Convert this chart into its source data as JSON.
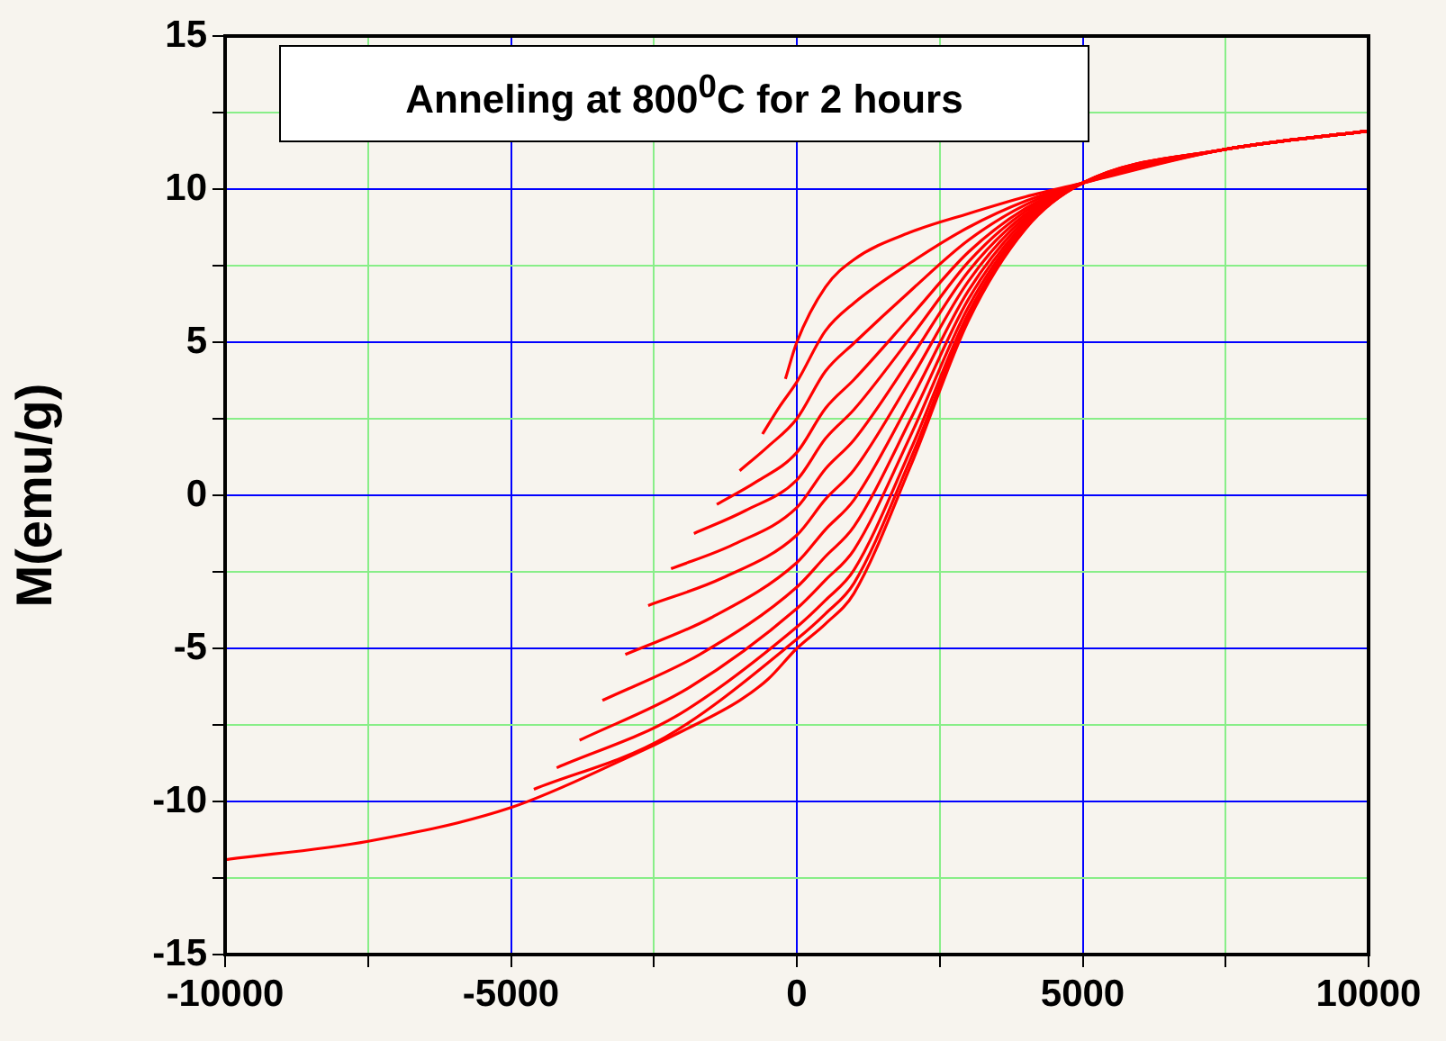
{
  "chart_data": {
    "type": "line",
    "title": "Anneling at 800$^{0}$C for 2 hours",
    "ylabel": "M(emu/g)",
    "xlim": [
      -10000,
      10000
    ],
    "ylim": [
      -15,
      15
    ],
    "xticks": [
      -10000,
      {
        "value": -7500,
        "label": null
      },
      -5000,
      {
        "value": -2500,
        "label": null
      },
      0,
      {
        "value": 2500,
        "label": null
      },
      5000,
      {
        "value": 7500,
        "label": null
      },
      10000
    ],
    "yticks": [
      -15,
      {
        "value": -12.5,
        "label": null
      },
      -10,
      {
        "value": -7.5,
        "label": null
      },
      -5,
      {
        "value": -2.5,
        "label": null
      },
      0,
      {
        "value": 2.5,
        "label": null
      },
      5,
      {
        "value": 7.5,
        "label": null
      },
      10,
      {
        "value": 12.5,
        "label": null
      },
      15
    ],
    "grid": true,
    "legend": false,
    "marker": "none",
    "line_style": "solid",
    "series": [
      {
        "color": "#ff0000",
        "x": [
          -10000,
          -7500,
          -5000,
          -3000,
          -2000,
          -1000,
          -500,
          0,
          500,
          1000,
          2000,
          3000,
          4000,
          5000,
          7500,
          10000
        ],
        "values": [
          -11.9,
          -11.3,
          -10.2,
          -8.6,
          -7.7,
          -6.7,
          -6.0,
          -5.0,
          -4.2,
          -3.2,
          1.0,
          5.7,
          8.7,
          10.2,
          11.3,
          11.9
        ]
      },
      {
        "color": "#ff0000",
        "x": [
          -4600,
          -2300,
          0,
          500,
          1000,
          2000,
          3000,
          4000,
          5000,
          7500,
          10000
        ],
        "values": [
          -9.6,
          -7.9,
          -4.7,
          -3.87,
          -2.87,
          1.23,
          5.8,
          8.73,
          10.2,
          11.3,
          11.9
        ]
      },
      {
        "color": "#ff0000",
        "x": [
          -4200,
          -2100,
          0,
          500,
          1000,
          2000,
          3000,
          4000,
          5000,
          7500,
          10000
        ],
        "values": [
          -8.9,
          -7.2,
          -4.3,
          -3.43,
          -2.44,
          1.53,
          5.94,
          8.77,
          10.2,
          11.3,
          11.9
        ]
      },
      {
        "color": "#ff0000",
        "x": [
          -3800,
          -1900,
          0,
          500,
          1000,
          2000,
          3000,
          4000,
          5000,
          7500,
          10000
        ],
        "values": [
          -8.0,
          -6.3,
          -3.7,
          -2.77,
          -1.78,
          1.99,
          6.15,
          8.84,
          10.2,
          11.3,
          11.9
        ]
      },
      {
        "color": "#ff0000",
        "x": [
          -3400,
          -1700,
          0,
          500,
          1000,
          2000,
          3000,
          4000,
          5000,
          7500,
          10000
        ],
        "values": [
          -6.7,
          -5.2,
          -3.0,
          -2.0,
          -1.02,
          2.52,
          6.4,
          8.91,
          10.2,
          11.3,
          11.9
        ]
      },
      {
        "color": "#ff0000",
        "x": [
          -3000,
          -1500,
          0,
          500,
          1000,
          2000,
          3000,
          4000,
          5000,
          7500,
          10000
        ],
        "values": [
          -5.2,
          -4.0,
          -2.2,
          -1.12,
          -0.15,
          3.13,
          6.68,
          9.0,
          10.2,
          11.3,
          11.9
        ]
      },
      {
        "color": "#ff0000",
        "x": [
          -2600,
          -1300,
          0,
          500,
          1000,
          2000,
          3000,
          4000,
          5000,
          7500,
          10000
        ],
        "values": [
          -3.6,
          -2.7,
          -1.3,
          -0.13,
          0.83,
          3.81,
          6.99,
          9.09,
          10.2,
          11.3,
          11.9
        ]
      },
      {
        "color": "#ff0000",
        "x": [
          -2200,
          -1100,
          0,
          500,
          1000,
          2000,
          3000,
          4000,
          5000,
          7500,
          10000
        ],
        "values": [
          -2.4,
          -1.6,
          -0.4,
          0.86,
          1.81,
          4.5,
          7.31,
          9.18,
          10.2,
          11.3,
          11.9
        ]
      },
      {
        "color": "#ff0000",
        "x": [
          -1800,
          -900,
          0,
          500,
          1000,
          2000,
          3000,
          4000,
          5000,
          7500,
          10000
        ],
        "values": [
          -1.25,
          -0.5,
          0.5,
          1.85,
          2.8,
          5.18,
          7.62,
          9.28,
          10.2,
          11.3,
          11.9
        ]
      },
      {
        "color": "#ff0000",
        "x": [
          -1400,
          -700,
          0,
          500,
          1000,
          2000,
          3000,
          4000,
          5000,
          7500,
          10000
        ],
        "values": [
          -0.3,
          0.45,
          1.4,
          2.84,
          3.78,
          5.86,
          7.94,
          9.37,
          10.2,
          11.3,
          11.9
        ]
      },
      {
        "color": "#ff0000",
        "x": [
          -1000,
          -500,
          0,
          500,
          1000,
          2000,
          3000,
          4000,
          5000,
          7500,
          10000
        ],
        "values": [
          0.8,
          1.6,
          2.5,
          4.05,
          4.97,
          6.7,
          8.33,
          9.49,
          10.2,
          11.3,
          11.9
        ]
      },
      {
        "color": "#ff0000",
        "x": [
          -600,
          -300,
          0,
          500,
          1000,
          2000,
          3000,
          4000,
          5000,
          7500,
          10000
        ],
        "values": [
          2.0,
          2.9,
          3.7,
          5.37,
          6.28,
          7.61,
          8.75,
          9.61,
          10.2,
          11.3,
          11.9
        ]
      },
      {
        "color": "#ff0000",
        "x": [
          -200,
          0,
          500,
          1000,
          2000,
          3000,
          4000,
          5000,
          7500,
          10000
        ],
        "values": [
          3.8,
          5.0,
          6.8,
          7.7,
          8.6,
          9.2,
          9.75,
          10.2,
          11.3,
          11.9
        ]
      }
    ]
  }
}
